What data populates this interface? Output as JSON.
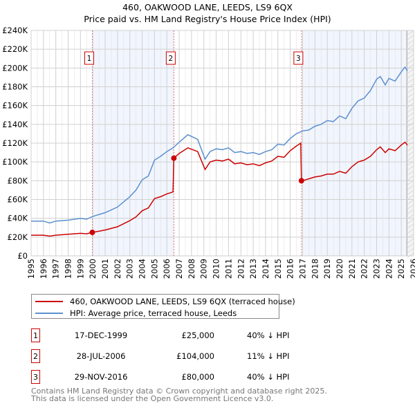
{
  "chart_data": {
    "type": "line",
    "title": "460, OAKWOOD LANE, LEEDS, LS9 6QX",
    "subtitle": "Price paid vs. HM Land Registry's House Price Index (HPI)",
    "xlim": [
      1995,
      2026
    ],
    "ylim": [
      0,
      240000
    ],
    "x_ticks": [
      "1995",
      "1996",
      "1997",
      "1998",
      "1999",
      "2000",
      "2001",
      "2002",
      "2003",
      "2004",
      "2005",
      "2006",
      "2007",
      "2008",
      "2009",
      "2010",
      "2011",
      "2012",
      "2013",
      "2014",
      "2015",
      "2016",
      "2017",
      "2018",
      "2019",
      "2020",
      "2021",
      "2022",
      "2023",
      "2024",
      "2025",
      "2026"
    ],
    "y_ticks": [
      {
        "v": 0,
        "label": "£0"
      },
      {
        "v": 20000,
        "label": "£20K"
      },
      {
        "v": 40000,
        "label": "£40K"
      },
      {
        "v": 60000,
        "label": "£60K"
      },
      {
        "v": 80000,
        "label": "£80K"
      },
      {
        "v": 100000,
        "label": "£100K"
      },
      {
        "v": 120000,
        "label": "£120K"
      },
      {
        "v": 140000,
        "label": "£140K"
      },
      {
        "v": 160000,
        "label": "£160K"
      },
      {
        "v": 180000,
        "label": "£180K"
      },
      {
        "v": 200000,
        "label": "£200K"
      },
      {
        "v": 220000,
        "label": "£220K"
      },
      {
        "v": 240000,
        "label": "£240K"
      }
    ],
    "grid": true,
    "shaded_ranges": [
      [
        1999.96,
        2006.57
      ],
      [
        2016.91,
        2025.45
      ]
    ],
    "forecast_start": 2025.45,
    "series": [
      {
        "name": "460, OAKWOOD LANE, LEEDS, LS9 6QX (terraced house)",
        "color": "#cc0000",
        "x": [
          1995,
          1996,
          1996.5,
          1997,
          1998,
          1999,
          1999.5,
          1999.96,
          2000,
          2001,
          2002,
          2003,
          2003.5,
          2004,
          2004.5,
          2005,
          2005.5,
          2006,
          2006.5,
          2006.57,
          2007,
          2007.7,
          2008.5,
          2009.1,
          2009.5,
          2010,
          2010.5,
          2011,
          2011.5,
          2012,
          2012.5,
          2013,
          2013.5,
          2014,
          2014.5,
          2015,
          2015.5,
          2016,
          2016.5,
          2016.85,
          2016.91,
          2017,
          2017.5,
          2018,
          2018.5,
          2019,
          2019.5,
          2020,
          2020.5,
          2021,
          2021.5,
          2022,
          2022.5,
          2023,
          2023.3,
          2023.7,
          2024,
          2024.5,
          2025,
          2025.3,
          2025.5
        ],
        "y": [
          22000,
          22000,
          21000,
          22000,
          23000,
          24000,
          23500,
          25000,
          25000,
          27500,
          31000,
          37500,
          41500,
          48000,
          51000,
          61000,
          63000,
          66000,
          68000,
          104000,
          109000,
          115000,
          111000,
          92000,
          100000,
          102000,
          101000,
          103000,
          98000,
          99000,
          97000,
          98000,
          96000,
          99000,
          101000,
          106000,
          105000,
          112000,
          117000,
          120000,
          80000,
          80000,
          82000,
          84000,
          85000,
          87000,
          87000,
          90000,
          88000,
          95000,
          100000,
          102000,
          106000,
          113000,
          116000,
          110000,
          114000,
          112000,
          118000,
          121000,
          118000
        ]
      },
      {
        "name": "HPI: Average price, terraced house, Leeds",
        "color": "#5b8fd0",
        "x": [
          1995,
          1996,
          1996.5,
          1997,
          1998,
          1999,
          1999.5,
          2000,
          2001,
          2002,
          2003,
          2003.5,
          2004,
          2004.5,
          2005,
          2005.5,
          2006,
          2006.5,
          2007,
          2007.7,
          2008.5,
          2009.1,
          2009.5,
          2010,
          2010.5,
          2011,
          2011.5,
          2012,
          2012.5,
          2013,
          2013.5,
          2014,
          2014.5,
          2015,
          2015.5,
          2016,
          2016.5,
          2017,
          2017.5,
          2018,
          2018.5,
          2019,
          2019.5,
          2020,
          2020.5,
          2021,
          2021.5,
          2022,
          2022.5,
          2023,
          2023.3,
          2023.7,
          2024,
          2024.5,
          2025,
          2025.3,
          2025.5
        ],
        "y": [
          37000,
          37000,
          35000,
          37000,
          38000,
          40000,
          39000,
          42000,
          46000,
          52000,
          63000,
          70000,
          81000,
          85000,
          102000,
          106000,
          111000,
          115000,
          121000,
          129000,
          124000,
          103000,
          111000,
          114000,
          113000,
          115000,
          110000,
          111000,
          109000,
          110000,
          108000,
          111000,
          113000,
          119000,
          118000,
          125000,
          130000,
          133000,
          134000,
          138000,
          140000,
          144000,
          143000,
          149000,
          146000,
          157000,
          165000,
          168000,
          176000,
          188000,
          191000,
          182000,
          189000,
          186000,
          196000,
          201000,
          197000
        ]
      }
    ],
    "sales": [
      {
        "n": "1",
        "x": 1999.96,
        "y": 25000
      },
      {
        "n": "2",
        "x": 2006.57,
        "y": 104000
      },
      {
        "n": "3",
        "x": 2016.91,
        "y": 80000
      }
    ]
  },
  "legend": {
    "red": "460, OAKWOOD LANE, LEEDS, LS9 6QX (terraced house)",
    "blue": "HPI: Average price, terraced house, Leeds"
  },
  "table": [
    {
      "n": "1",
      "date": "17-DEC-1999",
      "price": "£25,000",
      "hpi": "40% ↓ HPI"
    },
    {
      "n": "2",
      "date": "28-JUL-2006",
      "price": "£104,000",
      "hpi": "11% ↓ HPI"
    },
    {
      "n": "3",
      "date": "29-NOV-2016",
      "price": "£80,000",
      "hpi": "40% ↓ HPI"
    }
  ],
  "footer": {
    "line1": "Contains HM Land Registry data © Crown copyright and database right 2025.",
    "line2": "This data is licensed under the Open Government Licence v3.0."
  }
}
